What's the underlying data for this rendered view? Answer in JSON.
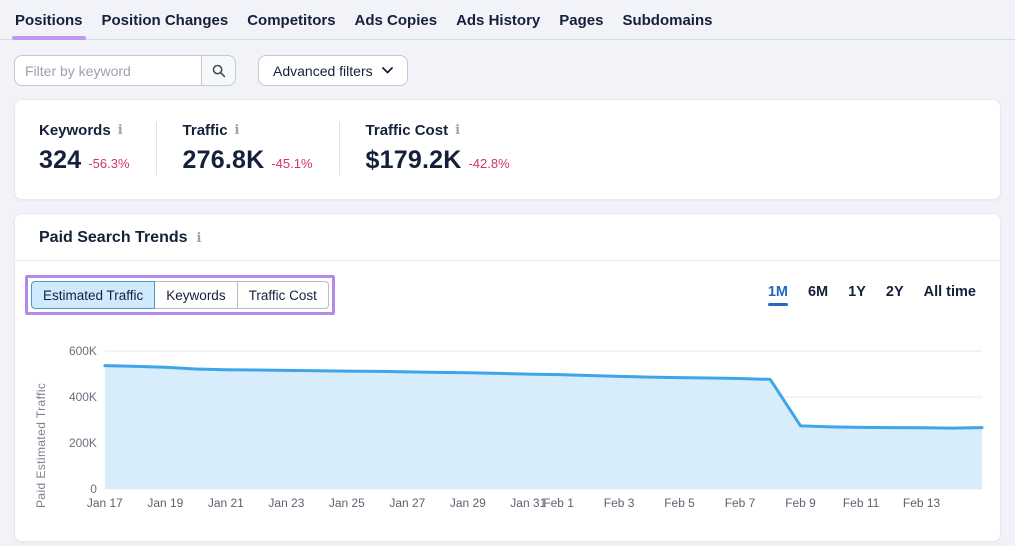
{
  "colors": {
    "purple_underline": "#bd97ee",
    "annotation_purple": "#b28be6",
    "link_blue": "#2268c4",
    "negative_red": "#d1356b",
    "chart_line": "#3fa5e9",
    "chart_fill": "#d8edfb",
    "selected_tab_bg": "#cfeafc"
  },
  "nav": {
    "tabs": [
      {
        "label": "Positions",
        "active": true
      },
      {
        "label": "Position Changes",
        "active": false
      },
      {
        "label": "Competitors",
        "active": false
      },
      {
        "label": "Ads Copies",
        "active": false
      },
      {
        "label": "Ads History",
        "active": false
      },
      {
        "label": "Pages",
        "active": false
      },
      {
        "label": "Subdomains",
        "active": false
      }
    ]
  },
  "filters": {
    "keyword_placeholder": "Filter by keyword",
    "advanced_filters_label": "Advanced filters"
  },
  "stats": [
    {
      "label": "Keywords",
      "value": "324",
      "change": "-56.3%"
    },
    {
      "label": "Traffic",
      "value": "276.8K",
      "change": "-45.1%"
    },
    {
      "label": "Traffic Cost",
      "value": "$179.2K",
      "change": "-42.8%"
    }
  ],
  "trends": {
    "title": "Paid Search Trends",
    "metric_tabs": [
      {
        "label": "Estimated Traffic",
        "selected": true
      },
      {
        "label": "Keywords",
        "selected": false
      },
      {
        "label": "Traffic Cost",
        "selected": false
      }
    ],
    "ranges": [
      {
        "label": "1M",
        "selected": true
      },
      {
        "label": "6M",
        "selected": false
      },
      {
        "label": "1Y",
        "selected": false
      },
      {
        "label": "2Y",
        "selected": false
      },
      {
        "label": "All time",
        "selected": false
      }
    ]
  },
  "chart_data": {
    "type": "area",
    "title": "Paid Search Trends",
    "xlabel": "",
    "ylabel": "Paid Estimated Traffic",
    "ylim": [
      0,
      600
    ],
    "unit": "K",
    "grid": true,
    "legend": "none",
    "x": [
      "Jan 17",
      "Jan 18",
      "Jan 19",
      "Jan 20",
      "Jan 21",
      "Jan 22",
      "Jan 23",
      "Jan 24",
      "Jan 25",
      "Jan 26",
      "Jan 27",
      "Jan 28",
      "Jan 29",
      "Jan 30",
      "Jan 31",
      "Feb 1",
      "Feb 2",
      "Feb 3",
      "Feb 4",
      "Feb 5",
      "Feb 6",
      "Feb 7",
      "Feb 8",
      "Feb 9",
      "Feb 10",
      "Feb 11",
      "Feb 12",
      "Feb 13",
      "Feb 14",
      "Feb 15"
    ],
    "values_thousands": [
      537,
      534,
      530,
      522,
      519,
      518,
      516,
      515,
      513,
      512,
      510,
      508,
      506,
      503,
      500,
      498,
      494,
      490,
      487,
      485,
      483,
      481,
      477,
      275,
      270,
      268,
      267,
      266,
      265,
      267
    ],
    "y_ticks": [
      {
        "value": 600,
        "label": "600K"
      },
      {
        "value": 400,
        "label": "400K"
      },
      {
        "value": 200,
        "label": "200K"
      },
      {
        "value": 0,
        "label": "0"
      }
    ],
    "x_ticks": [
      {
        "index": 0,
        "label": "Jan 17"
      },
      {
        "index": 2,
        "label": "Jan 19"
      },
      {
        "index": 4,
        "label": "Jan 21"
      },
      {
        "index": 6,
        "label": "Jan 23"
      },
      {
        "index": 8,
        "label": "Jan 25"
      },
      {
        "index": 10,
        "label": "Jan 27"
      },
      {
        "index": 12,
        "label": "Jan 29"
      },
      {
        "index": 14,
        "label": "Jan 31"
      },
      {
        "index": 15,
        "label": "Feb 1"
      },
      {
        "index": 17,
        "label": "Feb 3"
      },
      {
        "index": 19,
        "label": "Feb 5"
      },
      {
        "index": 21,
        "label": "Feb 7"
      },
      {
        "index": 23,
        "label": "Feb 9"
      },
      {
        "index": 25,
        "label": "Feb 11"
      },
      {
        "index": 27,
        "label": "Feb 13"
      }
    ]
  }
}
